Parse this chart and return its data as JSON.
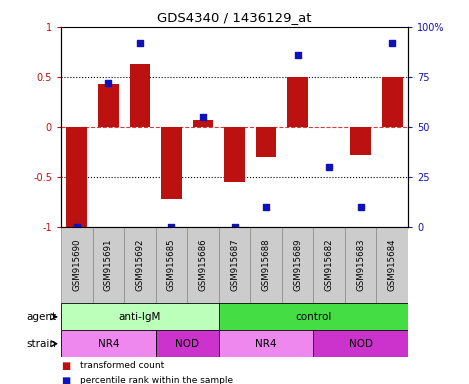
{
  "title": "GDS4340 / 1436129_at",
  "samples": [
    "GSM915690",
    "GSM915691",
    "GSM915692",
    "GSM915685",
    "GSM915686",
    "GSM915687",
    "GSM915688",
    "GSM915689",
    "GSM915682",
    "GSM915683",
    "GSM915684"
  ],
  "bar_values": [
    -1.0,
    0.43,
    0.63,
    -0.72,
    0.07,
    -0.55,
    -0.3,
    0.5,
    0.0,
    -0.28,
    0.5
  ],
  "dot_values": [
    0.0,
    0.72,
    0.92,
    0.0,
    0.55,
    0.0,
    0.1,
    0.86,
    0.3,
    0.1,
    0.92
  ],
  "bar_color": "#bb1111",
  "dot_color": "#1111bb",
  "ylim": [
    -1.0,
    1.0
  ],
  "yticks_left": [
    -1.0,
    -0.5,
    0.0,
    0.5,
    1.0
  ],
  "ytick_labels_left": [
    "-1",
    "-0.5",
    "0",
    "0.5",
    "1"
  ],
  "yticks_right": [
    0,
    25,
    50,
    75,
    100
  ],
  "ytick_labels_right": [
    "0",
    "25",
    "50",
    "75",
    "100%"
  ],
  "agent_groups": [
    {
      "label": "anti-IgM",
      "start": 0,
      "end": 5,
      "color": "#bbffbb"
    },
    {
      "label": "control",
      "start": 5,
      "end": 11,
      "color": "#44dd44"
    }
  ],
  "strain_groups": [
    {
      "label": "NR4",
      "start": 0,
      "end": 3,
      "color": "#ee88ee"
    },
    {
      "label": "NOD",
      "start": 3,
      "end": 5,
      "color": "#cc33cc"
    },
    {
      "label": "NR4",
      "start": 5,
      "end": 8,
      "color": "#ee88ee"
    },
    {
      "label": "NOD",
      "start": 8,
      "end": 11,
      "color": "#cc33cc"
    }
  ],
  "legend_items": [
    {
      "label": "transformed count",
      "color": "#bb1111"
    },
    {
      "label": "percentile rank within the sample",
      "color": "#1111bb"
    }
  ],
  "agent_label": "agent",
  "strain_label": "strain",
  "xlabel_bg": "#cccccc",
  "xlabel_border": "#888888"
}
